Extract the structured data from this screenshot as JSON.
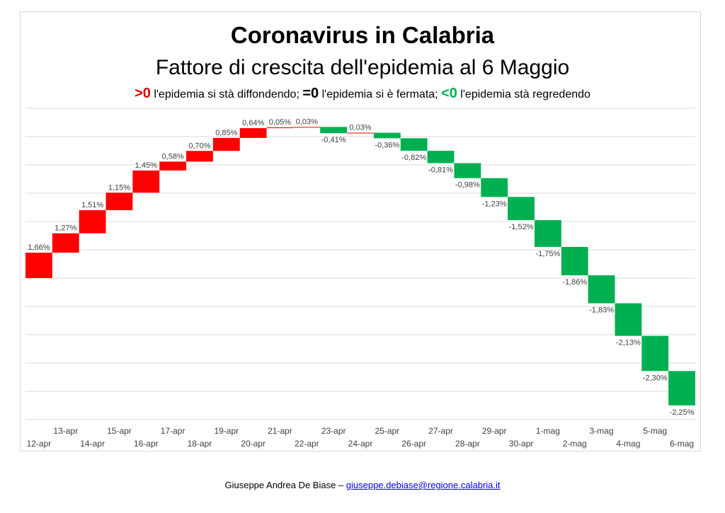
{
  "title": "Coronavirus in Calabria",
  "subtitle": "Fattore di crescita dell'epidemia al 6 Maggio",
  "legend": {
    "pos_symbol": ">0",
    "pos_text": " l'epidemia si stà diffondendo; ",
    "zero_symbol": "=0",
    "zero_text": " l'epidemia si è fermata; ",
    "neg_symbol": "<0",
    "neg_text": " l'epidemia stà regredendo"
  },
  "footer": {
    "author": "Giuseppe Andrea De Biase – ",
    "email": "giuseppe.debiase@regione.calabria.it"
  },
  "colors": {
    "positive": "#ff0000",
    "negative": "#00b050",
    "grid": "#d9d9d9"
  },
  "chart_data": {
    "type": "waterfall",
    "categories": [
      "12-apr",
      "13-apr",
      "14-apr",
      "15-apr",
      "16-apr",
      "17-apr",
      "18-apr",
      "19-apr",
      "20-apr",
      "21-apr",
      "22-apr",
      "23-apr",
      "24-apr",
      "25-apr",
      "26-apr",
      "27-apr",
      "28-apr",
      "29-apr",
      "30-apr",
      "1-mag",
      "2-mag",
      "3-mag",
      "4-mag",
      "5-mag",
      "6-mag"
    ],
    "values": [
      1.66,
      1.27,
      1.51,
      1.15,
      1.45,
      0.58,
      0.7,
      0.85,
      0.64,
      0.05,
      0.03,
      -0.41,
      0.03,
      -0.36,
      -0.82,
      -0.81,
      -0.98,
      -1.23,
      -1.52,
      -1.75,
      -1.86,
      -1.83,
      -2.13,
      -2.3,
      -2.25
    ],
    "labels": [
      "1,66%",
      "1,27%",
      "1,51%",
      "1,15%",
      "1,45%",
      "0,58%",
      "0,70%",
      "0,85%",
      "0,64%",
      "0,05%",
      "0,03%",
      "-0,41%",
      "0,03%",
      "-0,36%",
      "-0,82%",
      "-0,81%",
      "-0,98%",
      "-1,23%",
      "-1,52%",
      "-1,75%",
      "-1,86%",
      "-1,83%",
      "-2,13%",
      "-2,30%",
      "-2,25%"
    ],
    "unit": "%",
    "grid": true,
    "legend": "none"
  }
}
